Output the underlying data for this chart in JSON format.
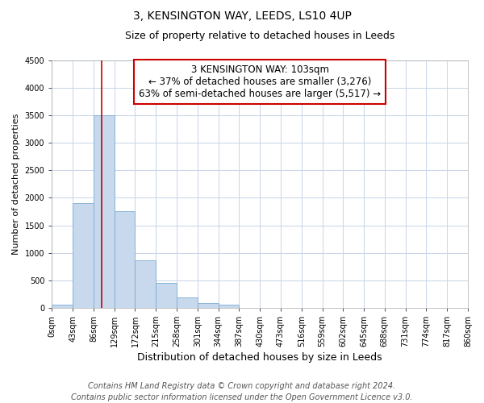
{
  "title": "3, KENSINGTON WAY, LEEDS, LS10 4UP",
  "subtitle": "Size of property relative to detached houses in Leeds",
  "xlabel": "Distribution of detached houses by size in Leeds",
  "ylabel": "Number of detached properties",
  "bar_color": "#c8d9ed",
  "bar_edge_color": "#7aadd4",
  "vline_color": "#cc0000",
  "vline_x": 103,
  "bin_edges": [
    0,
    43,
    86,
    129,
    172,
    215,
    258,
    301,
    344,
    387,
    430,
    473,
    516,
    559,
    602,
    645,
    688,
    731,
    774,
    817,
    860
  ],
  "bar_heights": [
    50,
    1900,
    3500,
    1760,
    860,
    450,
    185,
    90,
    60,
    0,
    0,
    0,
    0,
    0,
    0,
    0,
    0,
    0,
    0,
    0
  ],
  "ylim": [
    0,
    4500
  ],
  "yticks": [
    0,
    500,
    1000,
    1500,
    2000,
    2500,
    3000,
    3500,
    4000,
    4500
  ],
  "annotation_text": "3 KENSINGTON WAY: 103sqm\n← 37% of detached houses are smaller (3,276)\n63% of semi-detached houses are larger (5,517) →",
  "annotation_box_color": "#ffffff",
  "annotation_border_color": "#cc0000",
  "footnote1": "Contains HM Land Registry data © Crown copyright and database right 2024.",
  "footnote2": "Contains public sector information licensed under the Open Government Licence v3.0.",
  "background_color": "#ffffff",
  "plot_background_color": "#ffffff",
  "grid_color": "#c8d4e8",
  "title_fontsize": 10,
  "subtitle_fontsize": 9,
  "xlabel_fontsize": 9,
  "ylabel_fontsize": 8,
  "tick_fontsize": 7,
  "footnote_fontsize": 7,
  "annotation_fontsize": 8.5
}
